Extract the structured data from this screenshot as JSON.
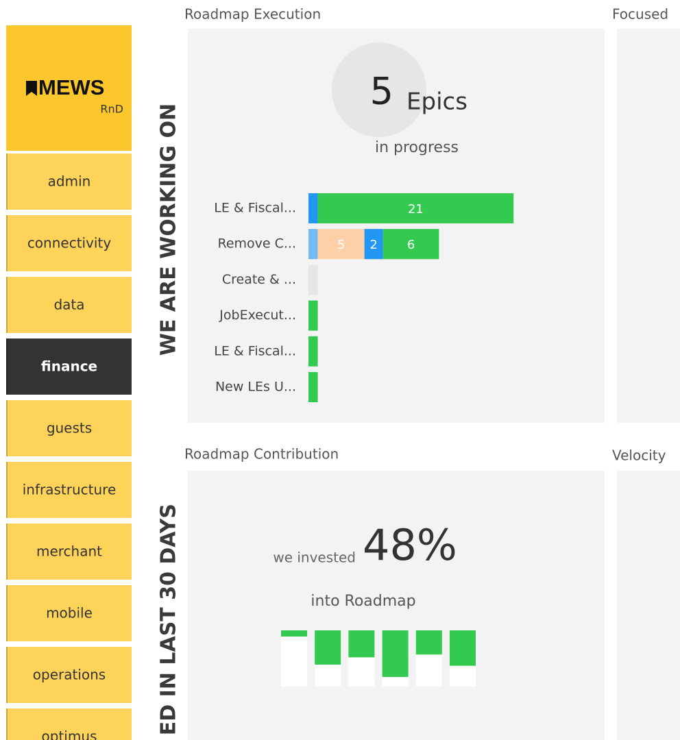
{
  "sidebar": {
    "logo": "MEWS",
    "subtitle": "RnD",
    "items": [
      {
        "label": "admin",
        "active": false
      },
      {
        "label": "connectivity",
        "active": false
      },
      {
        "label": "data",
        "active": false
      },
      {
        "label": "finance",
        "active": true
      },
      {
        "label": "guests",
        "active": false
      },
      {
        "label": "infrastructure",
        "active": false
      },
      {
        "label": "merchant",
        "active": false
      },
      {
        "label": "mobile",
        "active": false
      },
      {
        "label": "operations",
        "active": false
      },
      {
        "label": "optimus",
        "active": false
      }
    ]
  },
  "sections": [
    "WE ARE WORKING ON",
    "ED IN LAST 30 DAYS"
  ],
  "panels": {
    "execution": {
      "title": "Roadmap Execution",
      "count": 5,
      "unit": "Epics",
      "caption": "in progress",
      "chart": {
        "type": "bar",
        "orientation": "horizontal",
        "categories": [
          "LE & Fiscal...",
          "Remove C...",
          "Create & ...",
          "JobExecut...",
          "LE & Fiscal...",
          "New LEs U..."
        ],
        "series": [
          {
            "color": "#74b9f0",
            "values": [
              null,
              1,
              null,
              null,
              null,
              null
            ]
          },
          {
            "color": "#fdd0a8",
            "values": [
              null,
              5,
              null,
              null,
              null,
              null
            ]
          },
          {
            "color": "#2196f3",
            "values": [
              1,
              2,
              null,
              null,
              null,
              null
            ]
          },
          {
            "color": "#34c94f",
            "values": [
              21,
              6,
              null,
              1,
              1,
              1
            ]
          },
          {
            "color": "#e6e6e6",
            "values": [
              null,
              null,
              1,
              null,
              null,
              null
            ]
          }
        ]
      }
    },
    "focused": {
      "title": "Focused"
    },
    "contribution": {
      "title": "Roadmap Contribution",
      "prefix": "we invested",
      "value_label": "48%",
      "caption": "into Roadmap",
      "chart": {
        "type": "column",
        "values": [
          11,
          61,
          48,
          83,
          43,
          63
        ],
        "color": "#34c94f",
        "ylim": [
          0,
          100
        ]
      }
    },
    "velocity": {
      "title": "Velocity"
    }
  }
}
